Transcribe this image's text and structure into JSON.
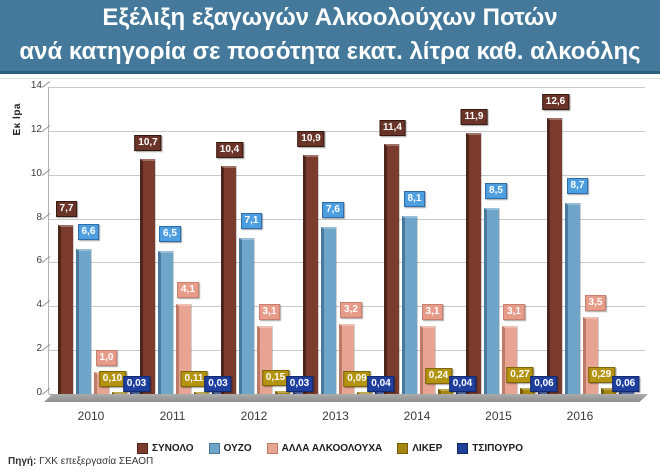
{
  "title": {
    "line1": "Εξέλιξη εξαγωγών Αλκοολούχων Ποτών",
    "line2": "ανά κατηγορία σε ποσότητα εκατ. λίτρα καθ. αλκοόλης"
  },
  "footer": {
    "source_label": "Πηγή:",
    "source_text": " ΓΧΚ επεξεργασία ΣΕΑΟΠ"
  },
  "colors": {
    "title_bar_bg": "#44799b",
    "title_bar_border": "#2d5f7c",
    "title_text": "#ffffff",
    "gridline": "#c9c9c9",
    "floor": "#a7a7a7",
    "axis_text": "#3c3c3c"
  },
  "chart_data": {
    "type": "bar",
    "title": "Εξέλιξη εξαγωγών Αλκοολούχων Ποτών ανά κατηγορία σε ποσότητα εκατ. λίτρα καθ. αλκοόλης",
    "xlabel": "",
    "ylabel": "Εκ lpa",
    "ylim": [
      0,
      14
    ],
    "yticks": [
      0,
      2,
      4,
      6,
      8,
      10,
      12,
      14
    ],
    "grid": true,
    "legend_position": "bottom",
    "categories": [
      "2010",
      "2011",
      "2012",
      "2013",
      "2014",
      "2015",
      "2016"
    ],
    "series": [
      {
        "name": "ΣΥΝΟΛΟ",
        "values": [
          7.7,
          10.7,
          10.4,
          10.9,
          11.4,
          11.9,
          12.6
        ],
        "labels": [
          "7,7",
          "10,7",
          "10,4",
          "10,9",
          "11,4",
          "11,9",
          "12,6"
        ],
        "color": "#7b3c2e",
        "side": "#4f241a",
        "label_bg": "#6b3428",
        "label_border": "#361a12"
      },
      {
        "name": "ΟΥΖΟ",
        "values": [
          6.6,
          6.5,
          7.1,
          7.6,
          8.1,
          8.5,
          8.7
        ],
        "labels": [
          "6,6",
          "6,5",
          "7,1",
          "7,6",
          "8,1",
          "8,5",
          "8,7"
        ],
        "color": "#6fa5c9",
        "side": "#49799f",
        "label_bg": "#4d9fe0",
        "label_border": "#2d6ca8"
      },
      {
        "name": "ΑΛΛΑ ΑΛΚΟΟΛΟΥΧΑ",
        "values": [
          1.0,
          4.1,
          3.1,
          3.2,
          3.1,
          3.1,
          3.5
        ],
        "labels": [
          "1,0",
          "4,1",
          "3,1",
          "3,2",
          "3,1",
          "3,1",
          "3,5"
        ],
        "color": "#e7a492",
        "side": "#bd7a67",
        "label_bg": "#e69c89",
        "label_border": "#c97f6e"
      },
      {
        "name": "ΛΙΚΕΡ",
        "values": [
          0.1,
          0.11,
          0.15,
          0.09,
          0.24,
          0.27,
          0.29
        ],
        "labels": [
          "0,10",
          "0,11",
          "0,15",
          "0,09",
          "0,24",
          "0,27",
          "0,29"
        ],
        "color": "#a5860f",
        "side": "#745e09",
        "label_bg": "#b3930f",
        "label_border": "#7c650a"
      },
      {
        "name": "ΤΣΙΠΟΥΡΟ",
        "values": [
          0.03,
          0.03,
          0.03,
          0.04,
          0.04,
          0.06,
          0.06
        ],
        "labels": [
          "0,03",
          "0,03",
          "0,03",
          "0,04",
          "0,04",
          "0,06",
          "0,06"
        ],
        "color": "#20409c",
        "side": "#14295e",
        "label_bg": "#1e3f9e",
        "label_border": "#122a6b"
      }
    ]
  }
}
